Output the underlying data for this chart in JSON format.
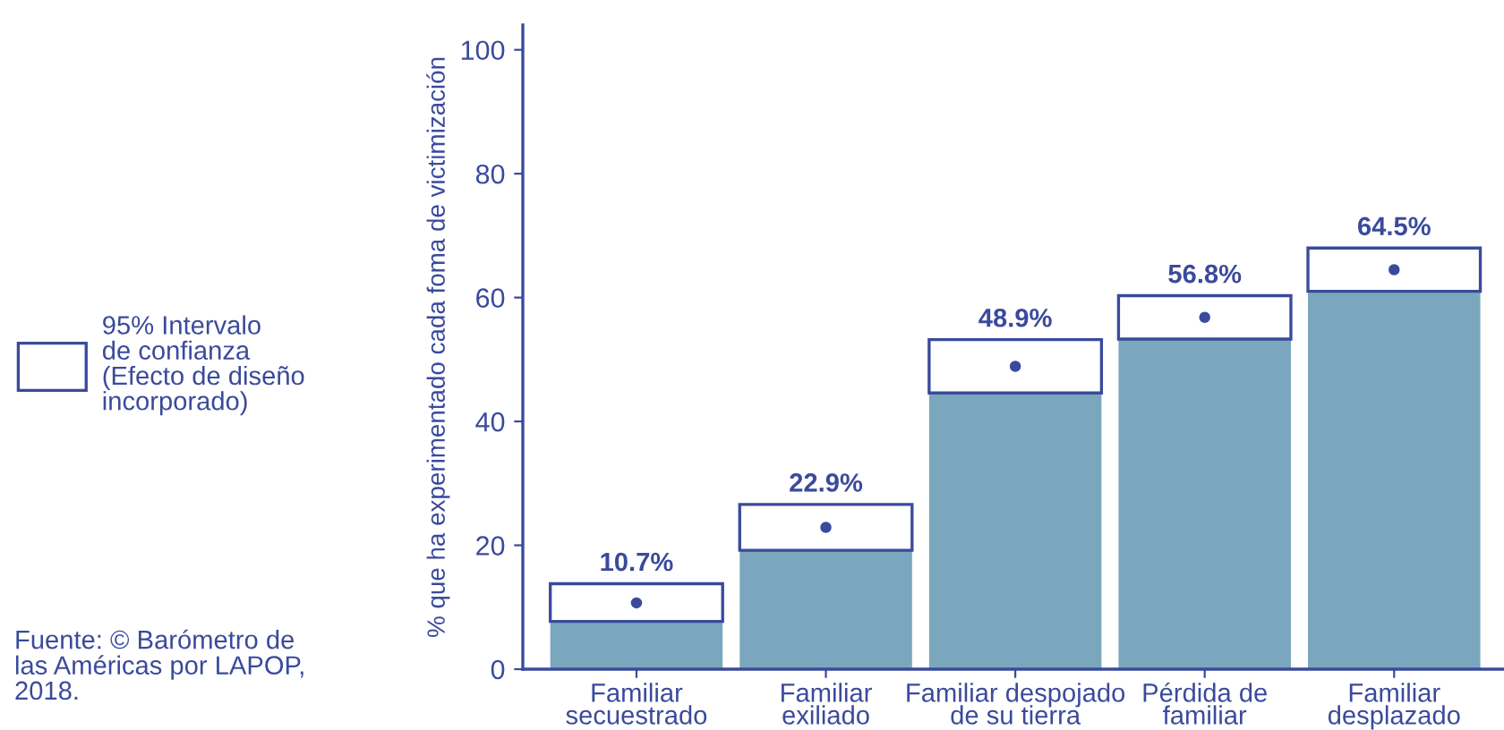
{
  "chart_data": {
    "type": "bar",
    "stacked": true,
    "categories": [
      "Familiar\nsecuestrado",
      "Familiar\nexiliado",
      "Familiar despojado\nde su tierra",
      "Pérdida de\nfamiliar",
      "Familiar\ndesplazado"
    ],
    "series": [
      {
        "color": "#7ba7be",
        "values": [
          7.7,
          19.2,
          44.6,
          53.3,
          61.0
        ]
      },
      {
        "name": "95% Intervalo\nde confianza\n(Efecto de diseño\nincorporado)",
        "color": "#ffffff",
        "values": [
          6.1,
          7.4,
          8.6,
          7.0,
          7.0
        ]
      },
      {
        "type": "scatter",
        "x": [
          "Familiar\nsecuestrado",
          "Familiar\nexiliado",
          "Familiar despojado\nde su tierra",
          "Pérdida de\nfamiliar",
          "Familiar\ndesplazado"
        ],
        "color": "#3a4a9c",
        "values": [
          10.7,
          22.9,
          48.9,
          56.8,
          64.5
        ],
        "value_labels": [
          "10.7%",
          "22.9%",
          "48.9%",
          "56.8%",
          "64.5%"
        ]
      }
    ],
    "ylabel": "% que ha experimentado cada foma de victimización",
    "ylim": [
      0,
      104
    ],
    "yticks": [
      0,
      20,
      40,
      60,
      80,
      100
    ],
    "legend": "left",
    "marker": "circle",
    "annotations": [
      "Fuente: © Barómetro de\nlas Américas por LAPOP,\n2018."
    ]
  }
}
